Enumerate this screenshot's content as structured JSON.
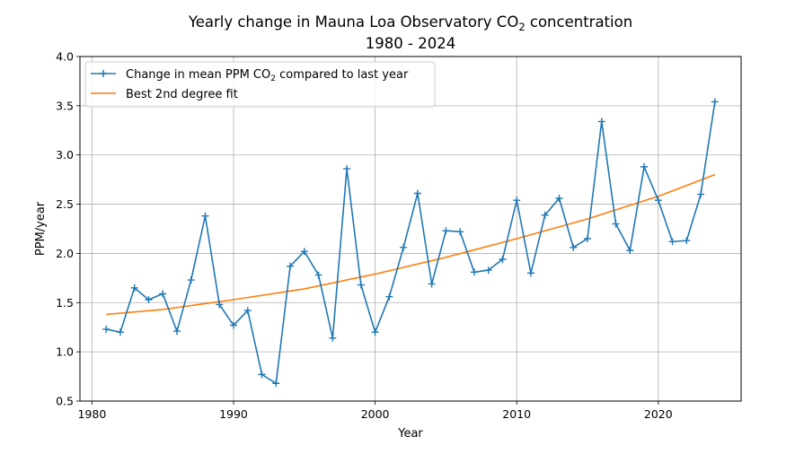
{
  "chart_data": {
    "type": "line",
    "title_prefix": "Yearly change in Mauna Loa Observatory CO",
    "title_sub": "2",
    "title_suffix": " concentration",
    "subtitle": "1980 - 2024",
    "xlabel": "Year",
    "ylabel": "PPM/year",
    "xlim": [
      1979.15,
      2025.85
    ],
    "ylim": [
      0.5,
      4.0
    ],
    "xticks": [
      1980,
      1990,
      2000,
      2010,
      2020
    ],
    "yticks": [
      "0.5",
      "1.0",
      "1.5",
      "2.0",
      "2.5",
      "3.0",
      "3.5",
      "4.0"
    ],
    "grid": true,
    "legend_position": "top-left",
    "series": [
      {
        "name_prefix": "Change in mean PPM CO",
        "name_sub": "2",
        "name_suffix": " compared to last year",
        "color": "#1f77b4",
        "marker": "+",
        "x": [
          1981,
          1982,
          1983,
          1984,
          1985,
          1986,
          1987,
          1988,
          1989,
          1990,
          1991,
          1992,
          1993,
          1994,
          1995,
          1996,
          1997,
          1998,
          1999,
          2000,
          2001,
          2002,
          2003,
          2004,
          2005,
          2006,
          2007,
          2008,
          2009,
          2010,
          2011,
          2012,
          2013,
          2014,
          2015,
          2016,
          2017,
          2018,
          2019,
          2020,
          2021,
          2022,
          2023,
          2024
        ],
        "y": [
          1.23,
          1.2,
          1.65,
          1.53,
          1.59,
          1.21,
          1.73,
          2.38,
          1.48,
          1.27,
          1.42,
          0.77,
          0.68,
          1.87,
          2.02,
          1.78,
          1.14,
          2.86,
          1.68,
          1.2,
          1.56,
          2.06,
          2.61,
          1.69,
          2.23,
          2.22,
          1.81,
          1.83,
          1.94,
          2.54,
          1.8,
          2.39,
          2.56,
          2.06,
          2.15,
          3.34,
          2.3,
          2.03,
          2.88,
          2.54,
          2.12,
          2.13,
          2.6,
          3.54
        ]
      },
      {
        "name": "Best 2nd degree fit",
        "color": "#ff7f0e",
        "x": [
          1981,
          1985,
          1990,
          1995,
          2000,
          2005,
          2010,
          2015,
          2020,
          2024
        ],
        "y": [
          1.38,
          1.43,
          1.53,
          1.64,
          1.79,
          1.96,
          2.15,
          2.35,
          2.58,
          2.8
        ]
      }
    ]
  }
}
